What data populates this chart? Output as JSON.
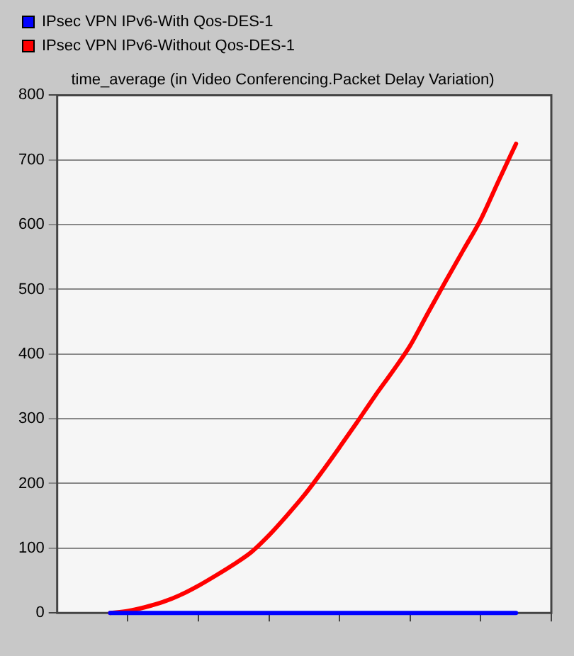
{
  "chart_data": {
    "type": "line",
    "title": "time_average (in Video Conferencing.Packet Delay Variation)",
    "categories": [
      null,
      null,
      null,
      null,
      null,
      null,
      null,
      null,
      null,
      null,
      null,
      null,
      null,
      null,
      null,
      null,
      null,
      null,
      null,
      null,
      null,
      null,
      null,
      null,
      null,
      null,
      null,
      null,
      null
    ],
    "ylim": [
      0,
      800
    ],
    "yticks": [
      0,
      100,
      200,
      300,
      400,
      500,
      600,
      700,
      800
    ],
    "grid": "y",
    "legend": "top left",
    "marker": "none",
    "line_style": "solid",
    "series": [
      {
        "name": "IPsec VPN IPv6-With Qos-DES-1",
        "color": "#0000ff",
        "values": [
          null,
          null,
          null,
          0,
          0,
          0,
          0,
          0,
          0,
          0,
          0,
          0,
          0,
          0,
          0,
          0,
          0,
          0,
          0,
          0,
          0,
          0,
          0,
          0,
          0,
          0,
          0,
          null,
          null
        ]
      },
      {
        "name": "IPsec VPN IPv6-Without Qos-DES-1",
        "color": "#ff0000",
        "values": [
          null,
          null,
          null,
          0,
          3,
          9,
          17,
          28,
          42,
          58,
          75,
          94,
          120,
          150,
          182,
          218,
          256,
          295,
          335,
          373,
          413,
          463,
          512,
          560,
          608,
          667,
          725,
          null,
          null
        ]
      }
    ]
  }
}
